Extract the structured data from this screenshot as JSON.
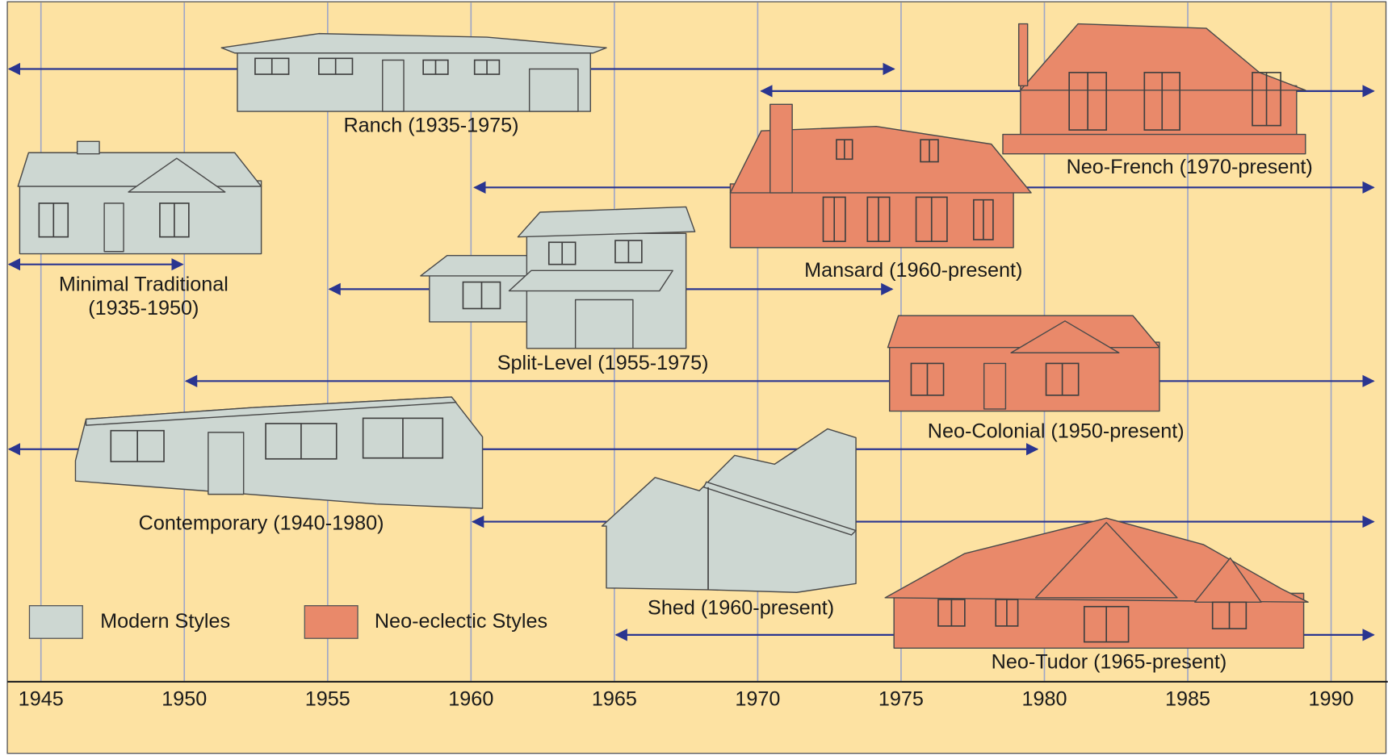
{
  "axis": {
    "ticks": [
      1945,
      1950,
      1955,
      1960,
      1965,
      1970,
      1975,
      1980,
      1985,
      1990
    ]
  },
  "styles": [
    {
      "label_lines": [
        "Ranch (1935-1975)"
      ],
      "group": "modern"
    },
    {
      "label_lines": [
        "Neo-French (1970-present)"
      ],
      "group": "neo"
    },
    {
      "label_lines": [
        "Minimal Traditional",
        "(1935-1950)"
      ],
      "group": "modern"
    },
    {
      "label_lines": [
        "Mansard (1960-present)"
      ],
      "group": "neo"
    },
    {
      "label_lines": [
        "Split-Level (1955-1975)"
      ],
      "group": "modern"
    },
    {
      "label_lines": [
        "Neo-Colonial (1950-present)"
      ],
      "group": "neo"
    },
    {
      "label_lines": [
        "Contemporary (1940-1980)"
      ],
      "group": "modern"
    },
    {
      "label_lines": [
        "Shed (1960-present)"
      ],
      "group": "modern"
    },
    {
      "label_lines": [
        "Neo-Tudor (1965-present)"
      ],
      "group": "neo"
    }
  ],
  "legend": [
    {
      "key": "modern",
      "label": "Modern Styles",
      "color": "#cdd7d2"
    },
    {
      "key": "neo",
      "label": "Neo-eclectic Styles",
      "color": "#e9896a"
    }
  ]
}
